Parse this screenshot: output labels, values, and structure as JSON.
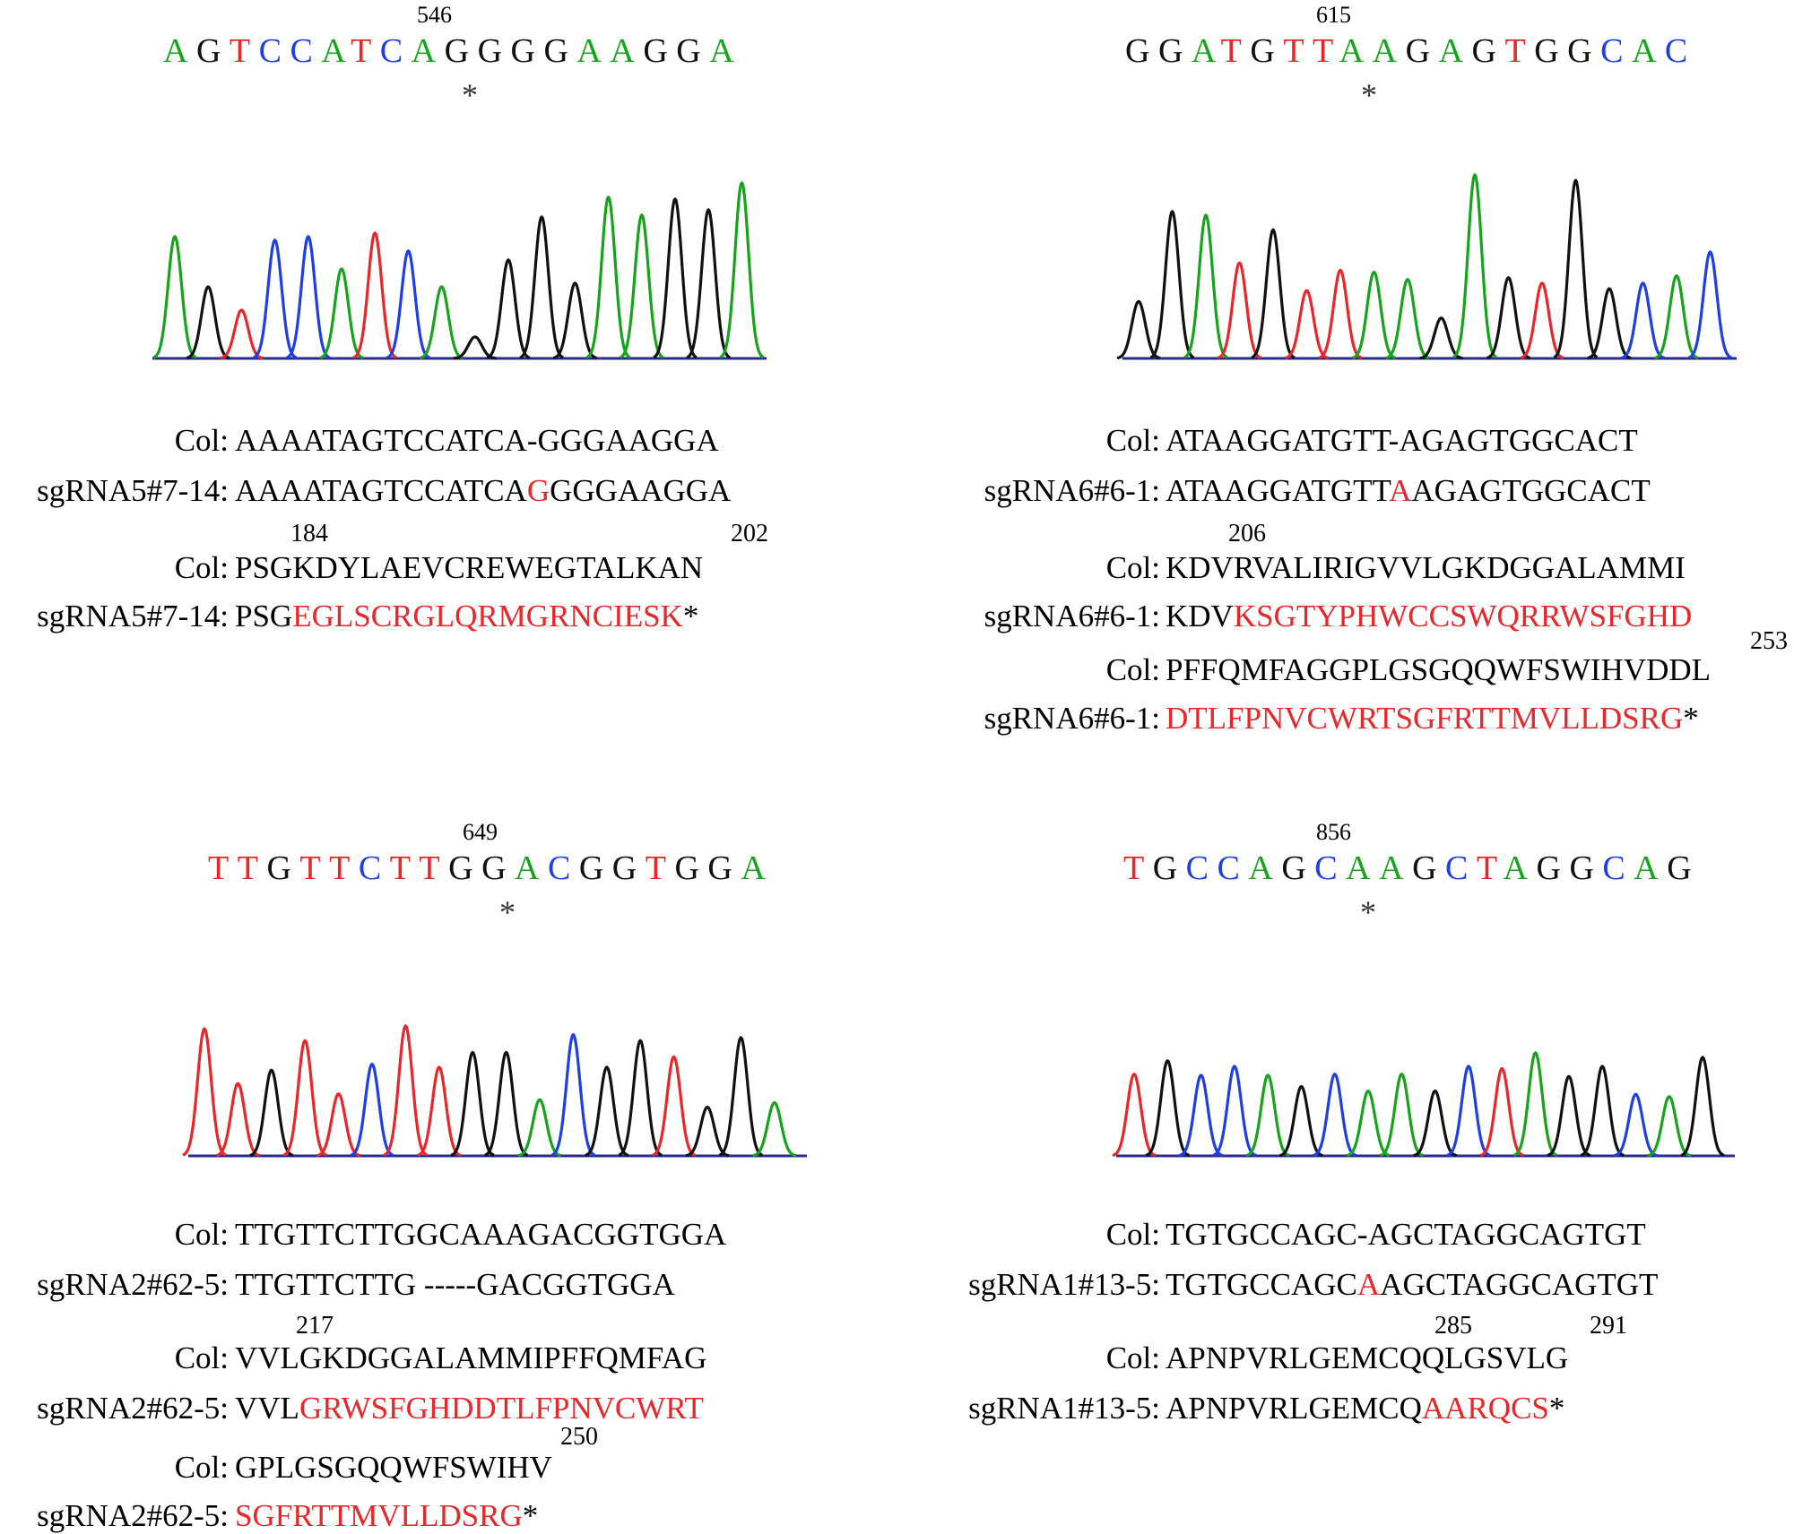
{
  "colors": {
    "A": "#17a31b",
    "C": "#1f3ee6",
    "G": "#111111",
    "T": "#e8272b",
    "changed": "#e8272b",
    "baseline": "#2a2a8c"
  },
  "panels": [
    {
      "id": "a",
      "position_label": "546",
      "marker": "*",
      "trace_bases": "AGTCCATCAGGGGAAGGA",
      "trace_heights": [
        0.68,
        0.4,
        0.27,
        0.66,
        0.68,
        0.5,
        0.7,
        0.6,
        0.4,
        0.12,
        0.55,
        0.79,
        0.42,
        0.9,
        0.8,
        0.89,
        0.83,
        0.98
      ],
      "alignments": [
        {
          "label": "Col:",
          "text": "AAAATAGTCCATCA-GGGAAGGA",
          "start_number": "",
          "end_number": ""
        },
        {
          "label": "sgRNA5#7-14:",
          "prefix": "AAAATAGTCCATCA",
          "changed": "G",
          "suffix": "GGGAAGGA"
        },
        {
          "label": "Col:",
          "text": "PSGKDYLAEVCREWEGTALKAN",
          "start_number": "184",
          "end_number": "202"
        },
        {
          "label": "sgRNA5#7-14:",
          "prefix": "PSG",
          "changed": "EGLSCRGLQRMGRNCIESK",
          "suffix": "*"
        }
      ]
    },
    {
      "id": "b",
      "position_label": "615",
      "marker": "*",
      "trace_bases": "GGATGTTAAGAGTGGCAC",
      "trace_heights": [
        0.31,
        0.8,
        0.78,
        0.52,
        0.7,
        0.37,
        0.48,
        0.47,
        0.43,
        0.22,
        1.0,
        0.44,
        0.41,
        0.97,
        0.38,
        0.41,
        0.45,
        0.58
      ],
      "alignments": [
        {
          "label": "Col:",
          "text": "ATAAGGATGTT-AGAGTGGCACT",
          "start_number": "",
          "end_number": ""
        },
        {
          "label": "sgRNA6#6-1:",
          "prefix": "ATAAGGATGTT",
          "changed": "A",
          "suffix": "AGAGTGGCACT"
        },
        {
          "label": "Col:",
          "text": "KDVRVALIRIGVVLGKDGGALAMMI",
          "start_number": "206",
          "end_number": ""
        },
        {
          "label": "sgRNA6#6-1:",
          "prefix": "KDV",
          "changed": "KSGTYPHWCCSWQRRWSFGHD",
          "suffix": ""
        },
        {
          "label": "Col:",
          "text": "PFFQMFAGGPLGSGQQWFSWIHVDDL",
          "start_number": "",
          "end_number": "253"
        },
        {
          "label": "sgRNA6#6-1:",
          "prefix": "",
          "changed": "DTLFPNVCWRTSGFRTTMVLLDSRG",
          "suffix": "*"
        }
      ]
    },
    {
      "id": "c",
      "position_label": "649",
      "marker": "*",
      "trace_bases": "TTGTTCTTGGACGGTGGA",
      "trace_heights": [
        0.86,
        0.49,
        0.58,
        0.78,
        0.42,
        0.62,
        0.88,
        0.6,
        0.7,
        0.7,
        0.38,
        0.82,
        0.6,
        0.78,
        0.67,
        0.33,
        0.8,
        0.36
      ],
      "alignments": [
        {
          "label": "Col:",
          "text": "TTGTTCTTGGCAAAGACGGTGGA",
          "start_number": "",
          "end_number": ""
        },
        {
          "label": "sgRNA2#62-5:",
          "text": "TTGTTCTTG -----GACGGTGGA"
        },
        {
          "label": "Col:",
          "text": "VVLGKDGGALAMMIPFFQMFAG",
          "start_number": "217",
          "end_number": ""
        },
        {
          "label": "sgRNA2#62-5:",
          "prefix": "VVL",
          "changed": "GRWSFGHDDTLFPNVCWRT",
          "suffix": ""
        },
        {
          "label": "Col:",
          "text": "GPLGSGQQWFSWIHV",
          "start_number": "",
          "end_number": "250"
        },
        {
          "label": "sgRNA2#62-5:",
          "prefix": "",
          "changed": "SGFRTTMVLLDSRG",
          "suffix": "*"
        }
      ]
    },
    {
      "id": "d",
      "position_label": "856",
      "marker": "*",
      "trace_bases": "TGCCAGCAAGCTAGGCAG",
      "trace_heights": [
        0.73,
        0.85,
        0.72,
        0.8,
        0.72,
        0.62,
        0.73,
        0.58,
        0.73,
        0.58,
        0.8,
        0.78,
        0.92,
        0.71,
        0.8,
        0.55,
        0.53,
        0.88
      ],
      "alignments": [
        {
          "label": "Col:",
          "text": "TGTGCCAGC-AGCTAGGCAGTGT",
          "start_number": "",
          "end_number": ""
        },
        {
          "label": "sgRNA1#13-5:",
          "prefix": "TGTGCCAGC",
          "changed": "A",
          "suffix": "AGCTAGGCAGTGT"
        },
        {
          "label": "Col:",
          "text": "APNPVRLGEMCQQLGSVLG",
          "start_number": "285",
          "end_number": "291"
        },
        {
          "label": "sgRNA1#13-5:",
          "prefix": "APNPVRLGEMCQ",
          "changed": "AARQCS",
          "suffix": "*"
        }
      ]
    }
  ]
}
